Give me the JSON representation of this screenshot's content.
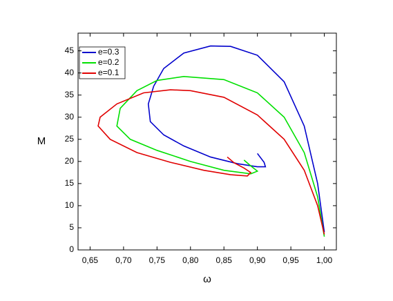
{
  "chart_data": {
    "type": "line",
    "xlabel": "ω",
    "ylabel": "M",
    "xlim": [
      0.632,
      1.018
    ],
    "ylim": [
      0,
      49
    ],
    "xticks": [
      {
        "value": 0.65,
        "label": "0,65"
      },
      {
        "value": 0.7,
        "label": "0,70"
      },
      {
        "value": 0.75,
        "label": "0,75"
      },
      {
        "value": 0.8,
        "label": "0,80"
      },
      {
        "value": 0.85,
        "label": "0,85"
      },
      {
        "value": 0.9,
        "label": "0,90"
      },
      {
        "value": 0.95,
        "label": "0,95"
      },
      {
        "value": 1.0,
        "label": "1,00"
      }
    ],
    "yticks": [
      0,
      5,
      10,
      15,
      20,
      25,
      30,
      35,
      40,
      45
    ],
    "legend": "upper left",
    "series": [
      {
        "name": "e=0.3",
        "color": "#0000cc",
        "x": [
          1.0,
          0.99,
          0.97,
          0.94,
          0.9,
          0.86,
          0.83,
          0.79,
          0.76,
          0.745,
          0.737,
          0.74,
          0.76,
          0.79,
          0.83,
          0.87,
          0.9,
          0.912,
          0.91,
          0.9
        ],
        "values": [
          4,
          15,
          28,
          38,
          44,
          46,
          46.1,
          44.5,
          41,
          37,
          33,
          29,
          26,
          23.5,
          21,
          19.5,
          18.8,
          18.8,
          19.8,
          21.8
        ]
      },
      {
        "name": "e=0.2",
        "color": "#00e000",
        "x": [
          1.0,
          0.99,
          0.97,
          0.94,
          0.9,
          0.85,
          0.79,
          0.75,
          0.72,
          0.695,
          0.69,
          0.71,
          0.75,
          0.8,
          0.85,
          0.89,
          0.9,
          0.89,
          0.88
        ],
        "values": [
          3,
          12,
          22,
          30,
          35.5,
          38.5,
          39.2,
          38.3,
          36,
          32,
          28,
          25,
          22.5,
          20,
          18,
          17.2,
          17.8,
          19,
          20.3
        ]
      },
      {
        "name": "e=0.1",
        "color": "#e00000",
        "x": [
          1.0,
          0.99,
          0.97,
          0.94,
          0.9,
          0.85,
          0.8,
          0.77,
          0.73,
          0.69,
          0.665,
          0.662,
          0.68,
          0.72,
          0.77,
          0.82,
          0.86,
          0.885,
          0.89,
          0.88,
          0.865,
          0.855
        ],
        "values": [
          3.5,
          10,
          18,
          25,
          30.5,
          34.5,
          36,
          36.2,
          35.5,
          33,
          30,
          28,
          25,
          22,
          19.8,
          18,
          17,
          16.7,
          17.5,
          18.5,
          19.7,
          21
        ]
      }
    ]
  }
}
